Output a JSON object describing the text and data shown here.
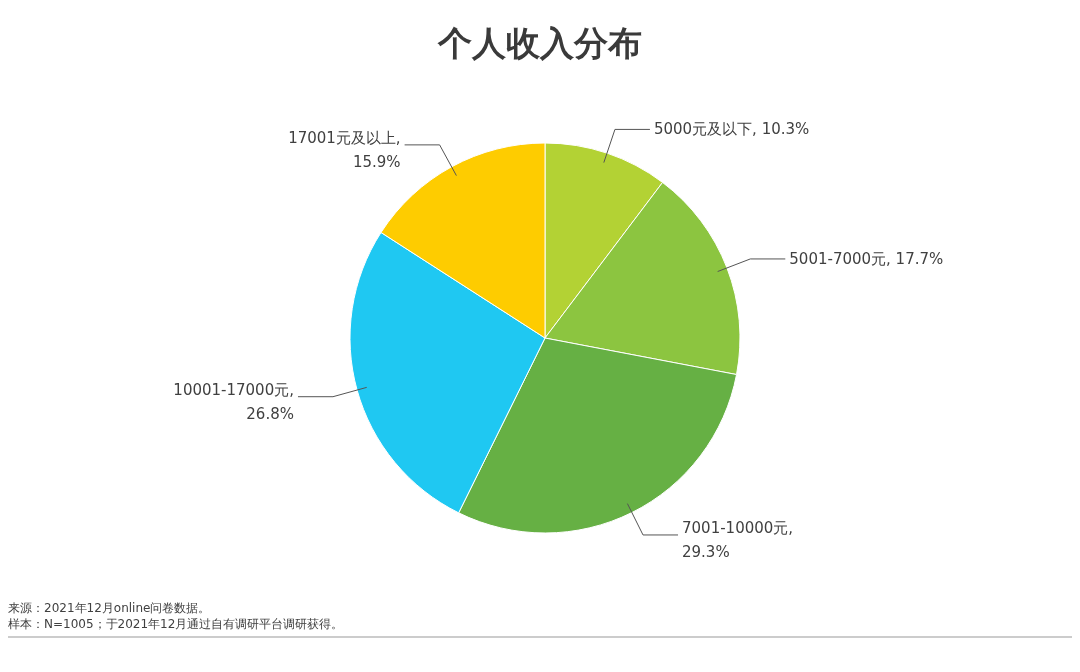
{
  "chart_data": {
    "type": "pie",
    "title": "个人收入分布",
    "categories": [
      "5000元及以下",
      "5001-7000元",
      "7001-10000元",
      "10001-17000元",
      "17001元及以上"
    ],
    "values": [
      10.3,
      17.7,
      29.3,
      26.8,
      15.9
    ],
    "colors": [
      "#b3d234",
      "#8cc540",
      "#66b044",
      "#1fc8f2",
      "#fecc00"
    ],
    "value_labels": [
      ", 10.3%",
      ", 17.7%",
      ",\n29.3%",
      ",\n26.8%",
      ",\n15.9%"
    ],
    "annotations": [
      "来源：2021年12月online问卷数据。",
      "样本：N=1005；于2021年12月通过自有调研平台调研获得。"
    ]
  }
}
